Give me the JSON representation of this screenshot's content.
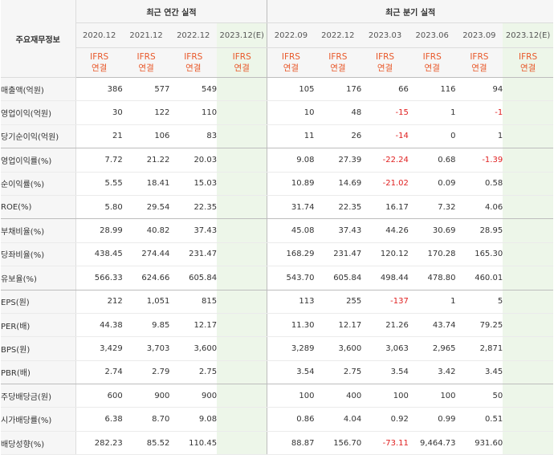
{
  "header": {
    "row_label": "주요재무정보",
    "annual_title": "최근 연간 실적",
    "quarterly_title": "최근 분기 실적"
  },
  "annual_periods": [
    "2020.12",
    "2021.12",
    "2022.12",
    "2023.12(E)"
  ],
  "quarterly_periods": [
    "2022.09",
    "2022.12",
    "2023.03",
    "2023.06",
    "2023.09",
    "2023.12(E)"
  ],
  "standard_label": "IFRS",
  "standard_sub": "연결",
  "colors": {
    "estimate_bg": "#edf6e9",
    "estimate_text": "#2f9e3b",
    "ifrs_text": "#e8582a",
    "negative_text": "#e02020",
    "label_bg": "#f6f6f6"
  },
  "rows": [
    {
      "label": "매출액(억원)",
      "annual": [
        "386",
        "577",
        "549",
        ""
      ],
      "quarterly": [
        "105",
        "176",
        "66",
        "116",
        "94",
        ""
      ]
    },
    {
      "label": "영업이익(억원)",
      "annual": [
        "30",
        "122",
        "110",
        ""
      ],
      "quarterly": [
        "10",
        "48",
        "-15",
        "1",
        "-1",
        ""
      ]
    },
    {
      "label": "당기순이익(억원)",
      "annual": [
        "21",
        "106",
        "83",
        ""
      ],
      "quarterly": [
        "11",
        "26",
        "-14",
        "0",
        "1",
        ""
      ]
    },
    {
      "label": "영업이익률(%)",
      "annual": [
        "7.72",
        "21.22",
        "20.03",
        ""
      ],
      "quarterly": [
        "9.08",
        "27.39",
        "-22.24",
        "0.68",
        "-1.39",
        ""
      ]
    },
    {
      "label": "순이익률(%)",
      "annual": [
        "5.55",
        "18.41",
        "15.03",
        ""
      ],
      "quarterly": [
        "10.89",
        "14.69",
        "-21.02",
        "0.09",
        "0.58",
        ""
      ]
    },
    {
      "label": "ROE(%)",
      "annual": [
        "5.80",
        "29.54",
        "22.35",
        ""
      ],
      "quarterly": [
        "31.74",
        "22.35",
        "16.17",
        "7.32",
        "4.06",
        ""
      ]
    },
    {
      "label": "부채비율(%)",
      "annual": [
        "28.99",
        "40.82",
        "37.43",
        ""
      ],
      "quarterly": [
        "45.08",
        "37.43",
        "44.26",
        "30.69",
        "28.95",
        ""
      ]
    },
    {
      "label": "당좌비율(%)",
      "annual": [
        "438.45",
        "274.44",
        "231.47",
        ""
      ],
      "quarterly": [
        "168.29",
        "231.47",
        "120.12",
        "170.28",
        "165.30",
        ""
      ]
    },
    {
      "label": "유보율(%)",
      "annual": [
        "566.33",
        "624.66",
        "605.84",
        ""
      ],
      "quarterly": [
        "543.70",
        "605.84",
        "498.44",
        "478.80",
        "460.01",
        ""
      ]
    },
    {
      "label": "EPS(원)",
      "annual": [
        "212",
        "1,051",
        "815",
        ""
      ],
      "quarterly": [
        "113",
        "255",
        "-137",
        "1",
        "5",
        ""
      ]
    },
    {
      "label": "PER(배)",
      "annual": [
        "44.38",
        "9.85",
        "12.17",
        ""
      ],
      "quarterly": [
        "11.30",
        "12.17",
        "21.26",
        "43.74",
        "79.25",
        ""
      ]
    },
    {
      "label": "BPS(원)",
      "annual": [
        "3,429",
        "3,703",
        "3,600",
        ""
      ],
      "quarterly": [
        "3,289",
        "3,600",
        "3,063",
        "2,965",
        "2,871",
        ""
      ]
    },
    {
      "label": "PBR(배)",
      "annual": [
        "2.74",
        "2.79",
        "2.75",
        ""
      ],
      "quarterly": [
        "3.54",
        "2.75",
        "3.54",
        "3.42",
        "3.45",
        ""
      ]
    },
    {
      "label": "주당배당금(원)",
      "annual": [
        "600",
        "900",
        "900",
        ""
      ],
      "quarterly": [
        "100",
        "400",
        "100",
        "100",
        "50",
        ""
      ]
    },
    {
      "label": "시가배당률(%)",
      "annual": [
        "6.38",
        "8.70",
        "9.08",
        ""
      ],
      "quarterly": [
        "0.86",
        "4.04",
        "0.92",
        "0.99",
        "0.51",
        ""
      ]
    },
    {
      "label": "배당성향(%)",
      "annual": [
        "282.23",
        "85.52",
        "110.45",
        ""
      ],
      "quarterly": [
        "88.87",
        "156.70",
        "-73.11",
        "9,464.73",
        "931.60",
        ""
      ]
    }
  ]
}
